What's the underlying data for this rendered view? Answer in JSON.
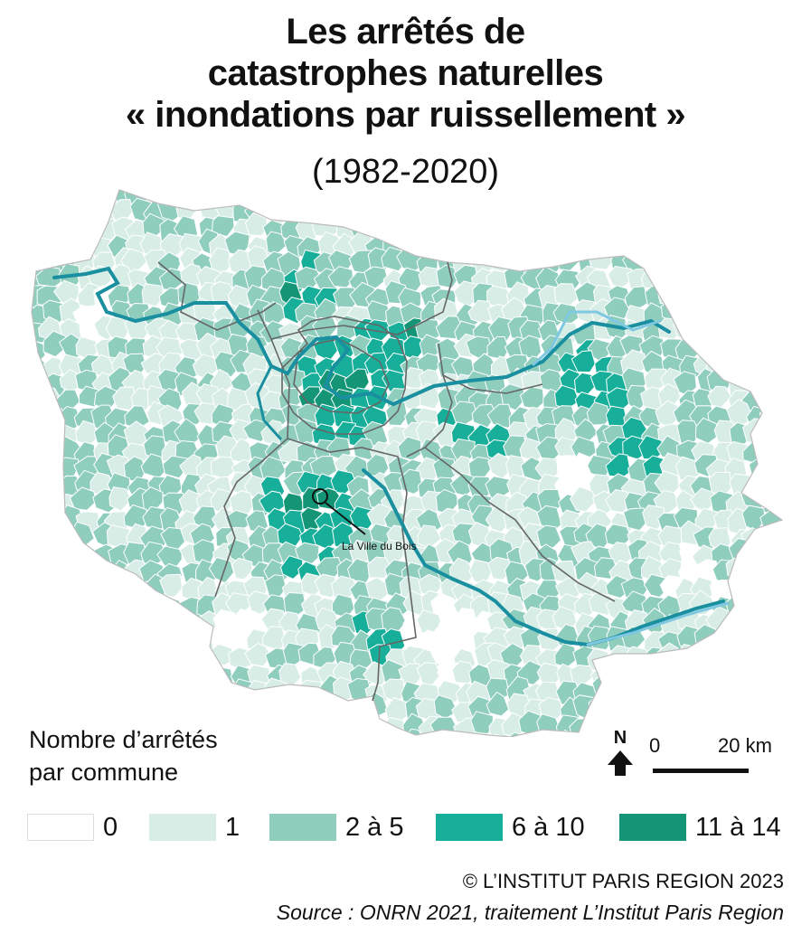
{
  "title": {
    "line1": "Les arrêtés de",
    "line2": "catastrophes naturelles",
    "line3": "« inondations par ruissellement »",
    "period": "(1982-2020)"
  },
  "map": {
    "place_label": "La Ville du Bois",
    "colors": {
      "c0": "#ffffff",
      "c1": "#d7ede6",
      "c2": "#8fcdbd",
      "c3": "#17ae9a",
      "c4": "#149676",
      "river": "#1a8fa0",
      "river_light": "#7fc8e2",
      "border": "#ffffff",
      "dept_border": "#666666"
    }
  },
  "legend": {
    "title_line1": "Nombre d’arrêtés",
    "title_line2": "par commune",
    "items": [
      {
        "label": "0",
        "color": "#ffffff"
      },
      {
        "label": "1",
        "color": "#d7ede6"
      },
      {
        "label": "2 à 5",
        "color": "#8fcdbd"
      },
      {
        "label": "6 à 10",
        "color": "#17ae9a"
      },
      {
        "label": "11 à 14",
        "color": "#149676"
      }
    ]
  },
  "north_arrow": {
    "letter": "N"
  },
  "scale": {
    "start": "0",
    "end": "20 km"
  },
  "footer": {
    "copyright": "© L’INSTITUT PARIS REGION 2023",
    "source": "Source : ONRN 2021, traitement L’Institut Paris Region"
  }
}
